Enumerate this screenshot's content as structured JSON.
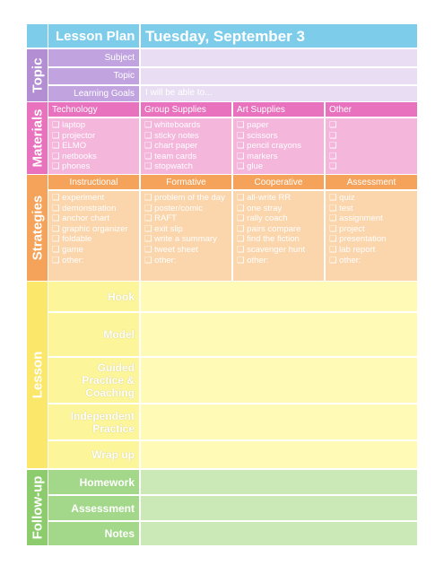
{
  "header": {
    "title": "Lesson Plan",
    "date": "Tuesday, September 3"
  },
  "topic": {
    "label": "Topic",
    "rows": [
      "Subject",
      "Topic",
      "Learning Goals"
    ],
    "goal_prompt": "I will be able to..."
  },
  "materials": {
    "label": "Materials",
    "columns": [
      {
        "heading": "Technology",
        "items": [
          "❑ laptop",
          "❑ projector",
          "❑ ELMO",
          "❑ netbooks",
          "❑ phones"
        ]
      },
      {
        "heading": "Group Supplies",
        "items": [
          "❑ whiteboards",
          "❑ sticky notes",
          "❑ chart paper",
          "❑ team cards",
          "❑ stopwatch"
        ]
      },
      {
        "heading": "Art Supplies",
        "items": [
          "❑ paper",
          "❑ scissors",
          "❑ pencil crayons",
          "❑ markers",
          "❑ glue"
        ]
      },
      {
        "heading": "Other",
        "items": [
          "❑",
          "❑",
          "❑",
          "❑",
          "❑"
        ]
      }
    ]
  },
  "strategies": {
    "label": "Strategies",
    "columns": [
      {
        "heading": "Instructional",
        "items": [
          "❑ experiment",
          "❑ demonstration",
          "❑ anchor chart",
          "❑ graphic organizer",
          "❑ foldable",
          "❑ game",
          "❑ other:"
        ]
      },
      {
        "heading": "Formative",
        "items": [
          "❑ problem of the day",
          "❑ poster/comic",
          "❑ RAFT",
          "❑ exit slip",
          "❑ write a summary",
          "❑ tweet sheet",
          "❑ other:"
        ]
      },
      {
        "heading": "Cooperative",
        "items": [
          "❑ all-write RR",
          "❑ one stray",
          "❑ rally coach",
          "❑ pairs compare",
          "❑ find the fiction",
          "❑ scavenger hunt",
          "❑ other:"
        ]
      },
      {
        "heading": "Assessment",
        "items": [
          "❑ quiz",
          "❑ test",
          "❑ assignment",
          "❑ project",
          "❑ presentation",
          "❑ lab report",
          "❑ other:"
        ]
      }
    ]
  },
  "lesson": {
    "label": "Lesson",
    "rows": [
      "Hook",
      "Model",
      "Guided Practice & Coaching",
      "Independent Practice",
      "Wrap up"
    ]
  },
  "followup": {
    "label": "Follow-up",
    "rows": [
      "Homework",
      "Assessment",
      "Notes"
    ]
  }
}
